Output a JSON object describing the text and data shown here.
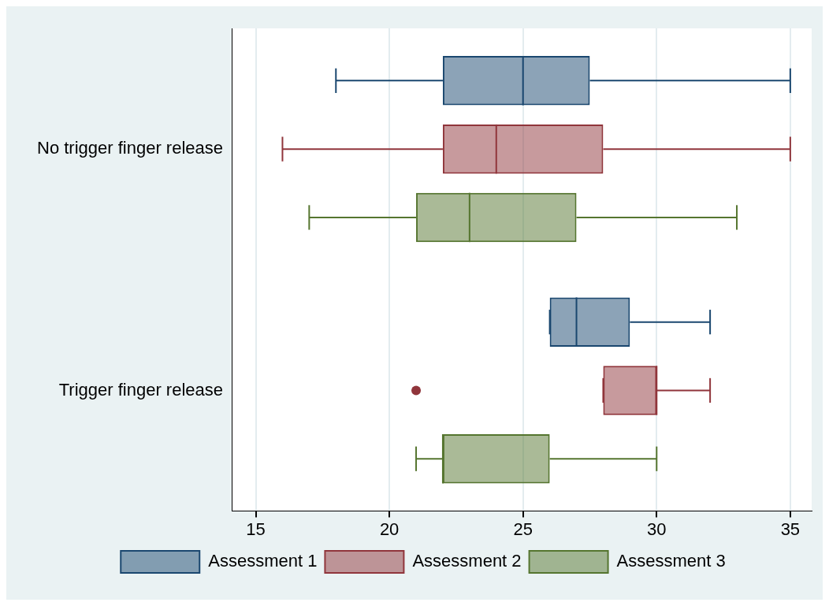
{
  "chart_data": {
    "type": "box",
    "orientation": "horizontal",
    "categories": [
      "No trigger finger release",
      "Trigger finger release"
    ],
    "series": [
      {
        "name": "Assessment 1",
        "color": "#1a476f",
        "boxes": [
          {
            "low": 18,
            "q1": 22,
            "median": 25,
            "q3": 27.5,
            "high": 35
          },
          {
            "low": 26,
            "q1": 26,
            "median": 27,
            "q3": 29,
            "high": 32
          }
        ]
      },
      {
        "name": "Assessment 2",
        "color": "#90353b",
        "boxes": [
          {
            "low": 16,
            "q1": 22,
            "median": 24,
            "q3": 28,
            "high": 35
          },
          {
            "low": 28,
            "q1": 28,
            "median": 30,
            "q3": 30,
            "high": 32,
            "outliers": [
              21
            ]
          }
        ]
      },
      {
        "name": "Assessment 3",
        "color": "#55752f",
        "boxes": [
          {
            "low": 17,
            "q1": 21,
            "median": 23,
            "q3": 27,
            "high": 33
          },
          {
            "low": 21,
            "q1": 22,
            "median": 22,
            "q3": 26,
            "high": 30
          }
        ]
      }
    ],
    "xlim": [
      14.1,
      35.8
    ],
    "xticks": [
      15,
      20,
      25,
      30,
      35
    ],
    "grid": "x",
    "legend": "bottom"
  }
}
